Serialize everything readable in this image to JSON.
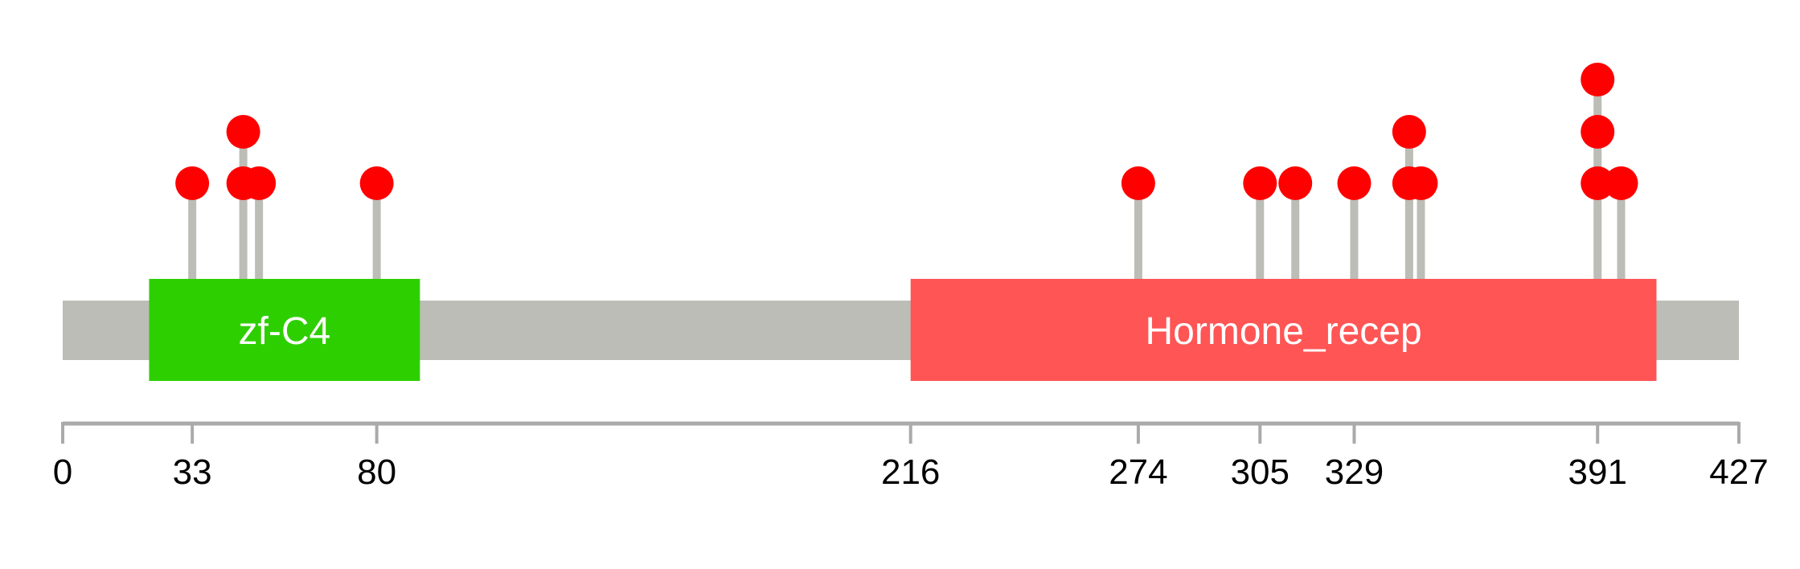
{
  "protein": {
    "length": 427,
    "backbone_color": "#BBBDB6"
  },
  "domains": [
    {
      "name": "zf-C4",
      "start": 22,
      "end": 91,
      "color": "#2ECF00"
    },
    {
      "name": "Hormone_recep",
      "start": 216,
      "end": 406,
      "color": "#FF5555"
    }
  ],
  "mutations": [
    {
      "position": 33,
      "count": 1
    },
    {
      "position": 46,
      "count": 2
    },
    {
      "position": 50,
      "count": 1
    },
    {
      "position": 80,
      "count": 1
    },
    {
      "position": 274,
      "count": 1
    },
    {
      "position": 305,
      "count": 1
    },
    {
      "position": 314,
      "count": 1
    },
    {
      "position": 329,
      "count": 1
    },
    {
      "position": 343,
      "count": 2
    },
    {
      "position": 346,
      "count": 1
    },
    {
      "position": 391,
      "count": 3
    },
    {
      "position": 397,
      "count": 1
    }
  ],
  "mutation_color": "#FF0000",
  "stem_color": "#BBBDB6",
  "axis": {
    "color": "#AAAAAA",
    "ticks": [
      "0",
      "33",
      "80",
      "216",
      "274",
      "305",
      "329",
      "391",
      "427"
    ]
  }
}
